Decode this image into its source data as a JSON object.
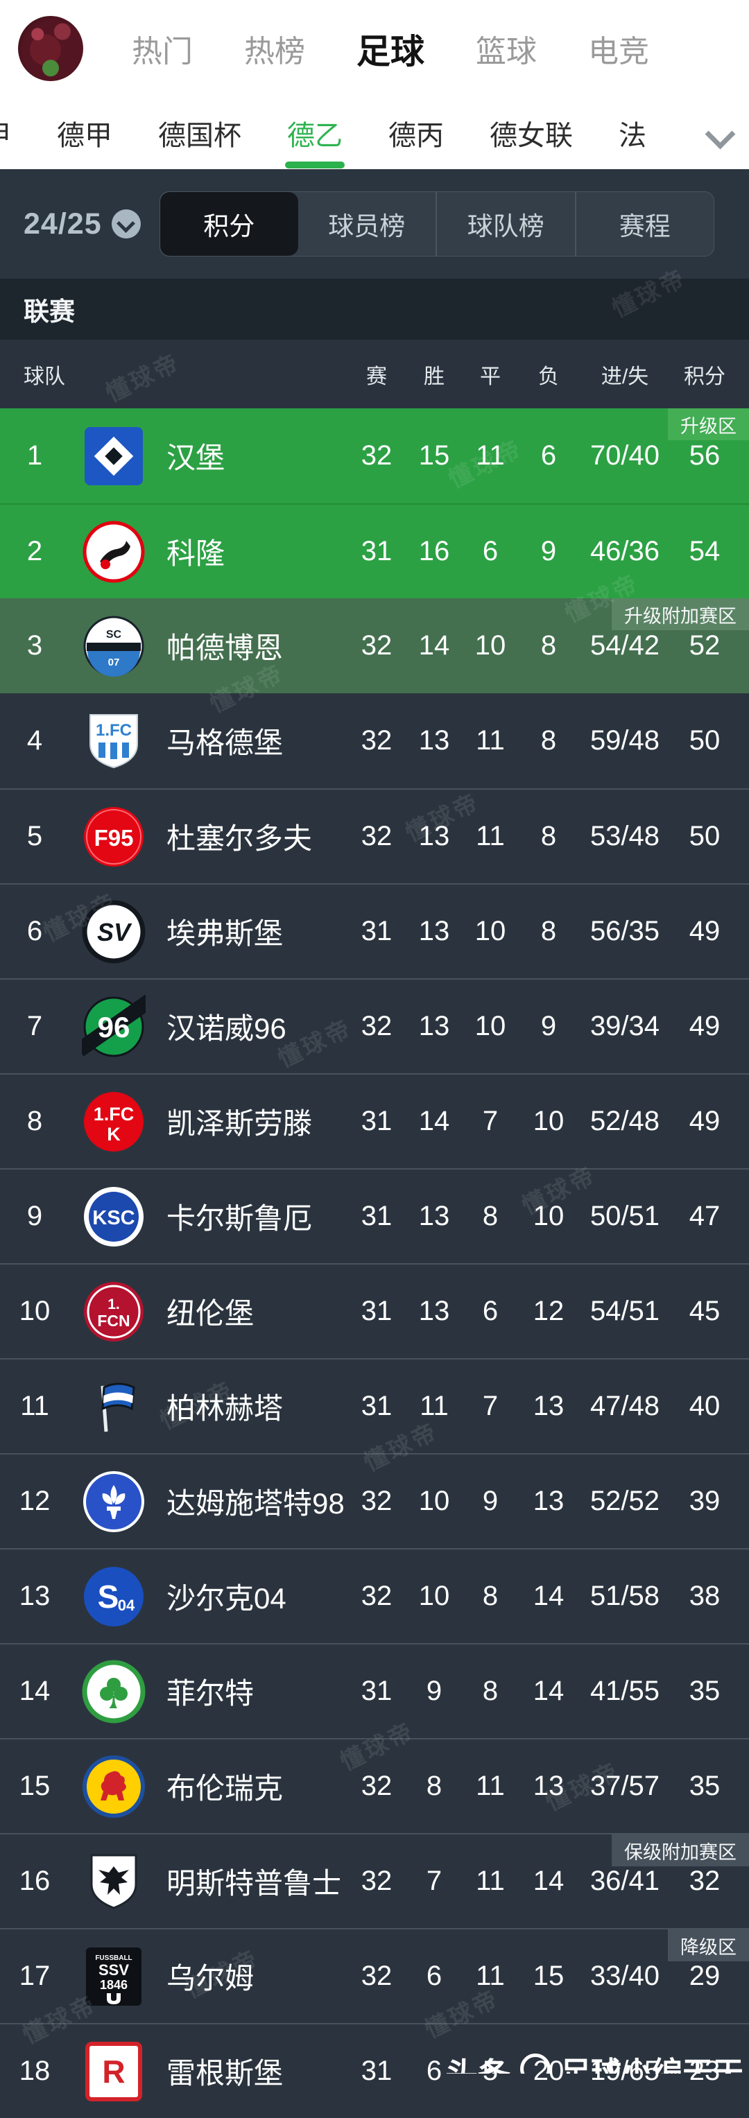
{
  "top_nav": {
    "items": [
      {
        "label": "热门",
        "active": false
      },
      {
        "label": "热榜",
        "active": false
      },
      {
        "label": "足球",
        "active": true
      },
      {
        "label": "篮球",
        "active": false
      },
      {
        "label": "电竞",
        "active": false
      }
    ]
  },
  "league_nav": {
    "items": [
      {
        "label": "甲",
        "active": false,
        "partial": true
      },
      {
        "label": "德甲",
        "active": false
      },
      {
        "label": "德国杯",
        "active": false
      },
      {
        "label": "德乙",
        "active": true
      },
      {
        "label": "德丙",
        "active": false
      },
      {
        "label": "德女联",
        "active": false
      },
      {
        "label": "法",
        "active": false,
        "partial": true
      }
    ]
  },
  "season_selector": {
    "label": "24/25"
  },
  "view_tabs": [
    {
      "label": "积分",
      "active": true
    },
    {
      "label": "球员榜",
      "active": false
    },
    {
      "label": "球队榜",
      "active": false
    },
    {
      "label": "赛程",
      "active": false
    }
  ],
  "section_title": "联赛",
  "table": {
    "columns": {
      "team": "球队",
      "played": "赛",
      "win": "胜",
      "draw": "平",
      "loss": "负",
      "goals": "进/失",
      "points": "积分"
    },
    "rows": [
      {
        "rank": 1,
        "team": "汉堡",
        "logo": "hamburg",
        "played": 32,
        "win": 15,
        "draw": 11,
        "loss": 6,
        "goals": "70/40",
        "points": 56,
        "zone": "promotion",
        "badge": "升级区"
      },
      {
        "rank": 2,
        "team": "科隆",
        "logo": "koln",
        "played": 31,
        "win": 16,
        "draw": 6,
        "loss": 9,
        "goals": "46/36",
        "points": 54,
        "zone": "promotion"
      },
      {
        "rank": 3,
        "team": "帕德博恩",
        "logo": "paderborn",
        "played": 32,
        "win": 14,
        "draw": 10,
        "loss": 8,
        "goals": "54/42",
        "points": 52,
        "zone": "promotion-playoff",
        "badge": "升级附加赛区"
      },
      {
        "rank": 4,
        "team": "马格德堡",
        "logo": "magdeburg",
        "played": 32,
        "win": 13,
        "draw": 11,
        "loss": 8,
        "goals": "59/48",
        "points": 50,
        "zone": ""
      },
      {
        "rank": 5,
        "team": "杜塞尔多夫",
        "logo": "dusseldorf",
        "played": 32,
        "win": 13,
        "draw": 11,
        "loss": 8,
        "goals": "53/48",
        "points": 50,
        "zone": ""
      },
      {
        "rank": 6,
        "team": "埃弗斯堡",
        "logo": "elversberg",
        "played": 31,
        "win": 13,
        "draw": 10,
        "loss": 8,
        "goals": "56/35",
        "points": 49,
        "zone": ""
      },
      {
        "rank": 7,
        "team": "汉诺威96",
        "logo": "hannover",
        "played": 32,
        "win": 13,
        "draw": 10,
        "loss": 9,
        "goals": "39/34",
        "points": 49,
        "zone": ""
      },
      {
        "rank": 8,
        "team": "凯泽斯劳滕",
        "logo": "kaiserslautern",
        "played": 31,
        "win": 14,
        "draw": 7,
        "loss": 10,
        "goals": "52/48",
        "points": 49,
        "zone": ""
      },
      {
        "rank": 9,
        "team": "卡尔斯鲁厄",
        "logo": "karlsruhe",
        "played": 31,
        "win": 13,
        "draw": 8,
        "loss": 10,
        "goals": "50/51",
        "points": 47,
        "zone": ""
      },
      {
        "rank": 10,
        "team": "纽伦堡",
        "logo": "nurnberg",
        "played": 31,
        "win": 13,
        "draw": 6,
        "loss": 12,
        "goals": "54/51",
        "points": 45,
        "zone": ""
      },
      {
        "rank": 11,
        "team": "柏林赫塔",
        "logo": "hertha",
        "played": 31,
        "win": 11,
        "draw": 7,
        "loss": 13,
        "goals": "47/48",
        "points": 40,
        "zone": ""
      },
      {
        "rank": 12,
        "team": "达姆施塔特98",
        "logo": "darmstadt",
        "played": 32,
        "win": 10,
        "draw": 9,
        "loss": 13,
        "goals": "52/52",
        "points": 39,
        "zone": ""
      },
      {
        "rank": 13,
        "team": "沙尔克04",
        "logo": "schalke",
        "played": 32,
        "win": 10,
        "draw": 8,
        "loss": 14,
        "goals": "51/58",
        "points": 38,
        "zone": ""
      },
      {
        "rank": 14,
        "team": "菲尔特",
        "logo": "furth",
        "played": 31,
        "win": 9,
        "draw": 8,
        "loss": 14,
        "goals": "41/55",
        "points": 35,
        "zone": ""
      },
      {
        "rank": 15,
        "team": "布伦瑞克",
        "logo": "braunschweig",
        "played": 32,
        "win": 8,
        "draw": 11,
        "loss": 13,
        "goals": "37/57",
        "points": 35,
        "zone": ""
      },
      {
        "rank": 16,
        "team": "明斯特普鲁士",
        "logo": "munster",
        "played": 32,
        "win": 7,
        "draw": 11,
        "loss": 14,
        "goals": "36/41",
        "points": 32,
        "zone": "relegation-playoff",
        "badge": "保级附加赛区"
      },
      {
        "rank": 17,
        "team": "乌尔姆",
        "logo": "ulm",
        "played": 32,
        "win": 6,
        "draw": 11,
        "loss": 15,
        "goals": "33/40",
        "points": 29,
        "zone": "relegation",
        "badge": "降级区"
      },
      {
        "rank": 18,
        "team": "雷根斯堡",
        "logo": "regensburg",
        "played": 31,
        "win": 6,
        "draw": 5,
        "loss": 20,
        "goals": "19/65",
        "points": 23,
        "zone": "relegation"
      }
    ]
  },
  "watermark_text": "懂球帝",
  "credit": {
    "brand": "头条",
    "user": "足球小编天天"
  },
  "colors": {
    "accent_green": "#2fb350",
    "row_green": "#2ca144",
    "row_muted_green": "#44704f",
    "row_dark": "#2b343e",
    "panel": "#2b3540",
    "tab_selected": "#14181d"
  }
}
